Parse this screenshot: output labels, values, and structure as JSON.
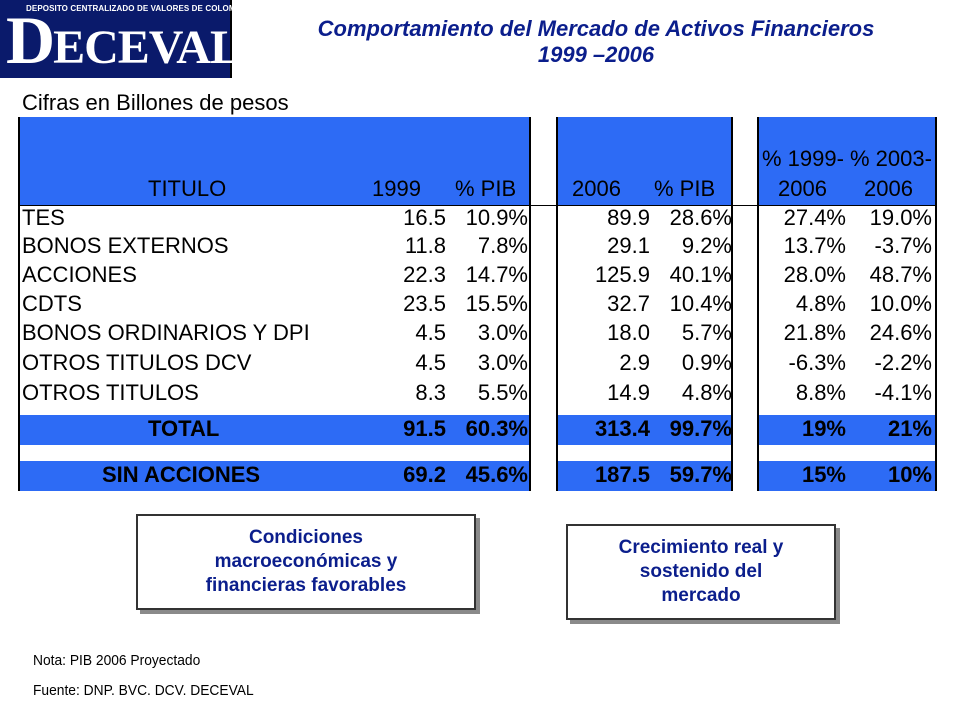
{
  "header": {
    "logo_tagline": "DEPOSITO CENTRALIZADO DE VALORES DE COLOMBIA",
    "logo_big": "D",
    "logo_rest": "ECEVAL S.A.",
    "title_line1": "Comportamiento del Mercado de Activos Financieros",
    "title_line2": "1999 –2006"
  },
  "units_label": "Cifras en Billones de pesos",
  "table": {
    "headers": {
      "titulo": "TITULO",
      "y1999": "1999",
      "pib1": "% PIB",
      "y2006": "2006",
      "pib2": "% PIB",
      "g1_top": "% 1999-",
      "g1_bottom": "2006",
      "g2_top": "% 2003-",
      "g2_bottom": "2006"
    },
    "rows": [
      {
        "name": "TES",
        "v1999": "16.5",
        "p1999": "10.9%",
        "v2006": "89.9",
        "p2006": "28.6%",
        "g1": "27.4%",
        "g2": "19.0%"
      },
      {
        "name": "BONOS EXTERNOS",
        "v1999": "11.8",
        "p1999": "7.8%",
        "v2006": "29.1",
        "p2006": "9.2%",
        "g1": "13.7%",
        "g2": "-3.7%"
      },
      {
        "name": "ACCIONES",
        "v1999": "22.3",
        "p1999": "14.7%",
        "v2006": "125.9",
        "p2006": "40.1%",
        "g1": "28.0%",
        "g2": "48.7%"
      },
      {
        "name": "CDTS",
        "v1999": "23.5",
        "p1999": "15.5%",
        "v2006": "32.7",
        "p2006": "10.4%",
        "g1": "4.8%",
        "g2": "10.0%"
      },
      {
        "name": "BONOS ORDINARIOS Y DPI",
        "v1999": "4.5",
        "p1999": "3.0%",
        "v2006": "18.0",
        "p2006": "5.7%",
        "g1": "21.8%",
        "g2": "24.6%"
      },
      {
        "name": "OTROS TITULOS DCV",
        "v1999": "4.5",
        "p1999": "3.0%",
        "v2006": "2.9",
        "p2006": "0.9%",
        "g1": "-6.3%",
        "g2": "-2.2%"
      },
      {
        "name": "OTROS TITULOS",
        "v1999": "8.3",
        "p1999": "5.5%",
        "v2006": "14.9",
        "p2006": "4.8%",
        "g1": "8.8%",
        "g2": "-4.1%"
      }
    ],
    "total": {
      "name": "TOTAL",
      "v1999": "91.5",
      "p1999": "60.3%",
      "v2006": "313.4",
      "p2006": "99.7%",
      "g1": "19%",
      "g2": "21%"
    },
    "sin_acciones": {
      "name": "SIN ACCIONES",
      "v1999": "69.2",
      "p1999": "45.6%",
      "v2006": "187.5",
      "p2006": "59.7%",
      "g1": "15%",
      "g2": "10%"
    }
  },
  "boxes": {
    "left": [
      "Condiciones",
      "macroeconómicas y",
      "financieras favorables"
    ],
    "right": [
      "Crecimiento real y",
      "sostenido del",
      "mercado"
    ]
  },
  "note": "Nota: PIB 2006 Proyectado",
  "source": "Fuente: DNP. BVC. DCV. DECEVAL",
  "colors": {
    "table_blue": "#2d6bf5",
    "title_blue": "#0b1e8c",
    "logo_navy": "#0a1a6b"
  }
}
